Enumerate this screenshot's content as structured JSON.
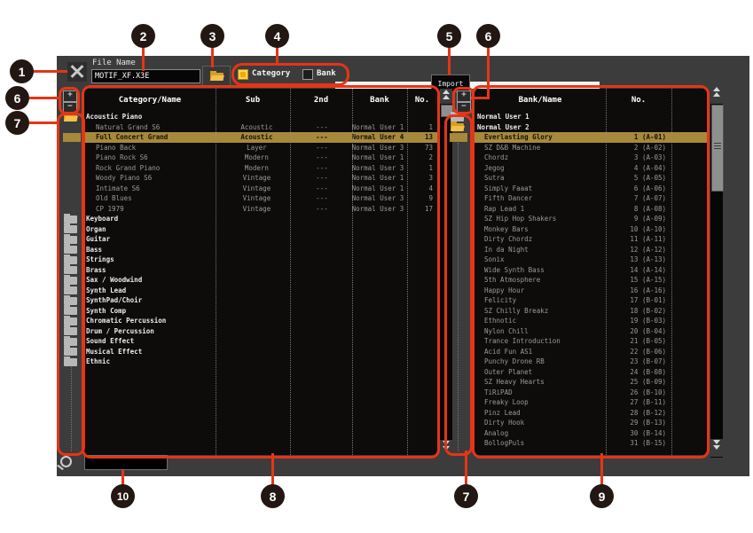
{
  "callouts": {
    "c1": "1",
    "c2": "2",
    "c3": "3",
    "c4": "4",
    "c5": "5",
    "c6": "6",
    "c7": "7",
    "c8": "8",
    "c9": "9",
    "c10": "10"
  },
  "header": {
    "file_name_label": "File Name",
    "file_name_value": "MOTIF_XF.X3E",
    "category_radio_label": "Category",
    "bank_radio_label": "Bank",
    "category_selected": true,
    "bank_selected": false,
    "import_button_label": "Import"
  },
  "search": {
    "value": ""
  },
  "left_panel": {
    "columns": [
      "Category/Name",
      "Sub",
      "2nd",
      "Bank",
      "No."
    ],
    "rows": [
      {
        "type": "category",
        "folder": "open",
        "name": "Acoustic Piano",
        "sub": "",
        "second": "",
        "bank": "",
        "no": ""
      },
      {
        "type": "voice",
        "name": "Natural Grand S6",
        "sub": "Acoustic",
        "second": "---",
        "bank": "Normal User 1",
        "no": "1"
      },
      {
        "type": "voice",
        "selected": true,
        "name": "Full Concert Grand",
        "sub": "Acoustic",
        "second": "---",
        "bank": "Normal User 4",
        "no": "13"
      },
      {
        "type": "voice",
        "name": "Piano Back",
        "sub": "Layer",
        "second": "---",
        "bank": "Normal User 3",
        "no": "73"
      },
      {
        "type": "voice",
        "name": "Piano Rock S6",
        "sub": "Modern",
        "second": "---",
        "bank": "Normal User 1",
        "no": "2"
      },
      {
        "type": "voice",
        "name": "Rock Grand Piano",
        "sub": "Modern",
        "second": "---",
        "bank": "Normal User 3",
        "no": "1"
      },
      {
        "type": "voice",
        "name": "Woody Piano S6",
        "sub": "Vintage",
        "second": "---",
        "bank": "Normal User 1",
        "no": "3"
      },
      {
        "type": "voice",
        "name": "Intimate S6",
        "sub": "Vintage",
        "second": "---",
        "bank": "Normal User 1",
        "no": "4"
      },
      {
        "type": "voice",
        "name": "Old Blues",
        "sub": "Vintage",
        "second": "---",
        "bank": "Normal User 3",
        "no": "9"
      },
      {
        "type": "voice",
        "name": "CP 1979",
        "sub": "Vintage",
        "second": "---",
        "bank": "Normal User 3",
        "no": "17"
      },
      {
        "type": "category",
        "folder": "closed",
        "name": "Keyboard",
        "sub": "",
        "second": "",
        "bank": "",
        "no": ""
      },
      {
        "type": "category",
        "folder": "closed",
        "name": "Organ",
        "sub": "",
        "second": "",
        "bank": "",
        "no": ""
      },
      {
        "type": "category",
        "folder": "closed",
        "name": "Guitar",
        "sub": "",
        "second": "",
        "bank": "",
        "no": ""
      },
      {
        "type": "category",
        "folder": "closed",
        "name": "Bass",
        "sub": "",
        "second": "",
        "bank": "",
        "no": ""
      },
      {
        "type": "category",
        "folder": "closed",
        "name": "Strings",
        "sub": "",
        "second": "",
        "bank": "",
        "no": ""
      },
      {
        "type": "category",
        "folder": "closed",
        "name": "Brass",
        "sub": "",
        "second": "",
        "bank": "",
        "no": ""
      },
      {
        "type": "category",
        "folder": "closed",
        "name": "Sax / Woodwind",
        "sub": "",
        "second": "",
        "bank": "",
        "no": ""
      },
      {
        "type": "category",
        "folder": "closed",
        "name": "Synth Lead",
        "sub": "",
        "second": "",
        "bank": "",
        "no": ""
      },
      {
        "type": "category",
        "folder": "closed",
        "name": "SynthPad/Choir",
        "sub": "",
        "second": "",
        "bank": "",
        "no": ""
      },
      {
        "type": "category",
        "folder": "closed",
        "name": "Synth Comp",
        "sub": "",
        "second": "",
        "bank": "",
        "no": ""
      },
      {
        "type": "category",
        "folder": "closed",
        "name": "Chromatic Percussion",
        "sub": "",
        "second": "",
        "bank": "",
        "no": ""
      },
      {
        "type": "category",
        "folder": "closed",
        "name": "Drum / Percussion",
        "sub": "",
        "second": "",
        "bank": "",
        "no": ""
      },
      {
        "type": "category",
        "folder": "closed",
        "name": "Sound Effect",
        "sub": "",
        "second": "",
        "bank": "",
        "no": ""
      },
      {
        "type": "category",
        "folder": "closed",
        "name": "Musical Effect",
        "sub": "",
        "second": "",
        "bank": "",
        "no": ""
      },
      {
        "type": "category",
        "folder": "closed",
        "name": "Ethnic",
        "sub": "",
        "second": "",
        "bank": "",
        "no": ""
      }
    ]
  },
  "right_panel": {
    "columns": [
      "Bank/Name",
      "No."
    ],
    "rows": [
      {
        "type": "category",
        "folder": "closed",
        "name": "Normal User 1",
        "no": ""
      },
      {
        "type": "category",
        "folder": "open",
        "name": "Normal User 2",
        "no": ""
      },
      {
        "type": "voice",
        "selected": true,
        "name": "Everlasting Glory",
        "no": "1 (A-01)"
      },
      {
        "type": "voice",
        "name": "SZ D&B Machine",
        "no": "2 (A-02)"
      },
      {
        "type": "voice",
        "name": "Chordz",
        "no": "3 (A-03)"
      },
      {
        "type": "voice",
        "name": "Jegog",
        "no": "4 (A-04)"
      },
      {
        "type": "voice",
        "name": "Sutra",
        "no": "5 (A-05)"
      },
      {
        "type": "voice",
        "name": "Simply Faaat",
        "no": "6 (A-06)"
      },
      {
        "type": "voice",
        "name": "Fifth Dancer",
        "no": "7 (A-07)"
      },
      {
        "type": "voice",
        "name": "Rap Lead 1",
        "no": "8 (A-08)"
      },
      {
        "type": "voice",
        "name": "SZ Hip Hop Shakers",
        "no": "9 (A-09)"
      },
      {
        "type": "voice",
        "name": "Monkey Bars",
        "no": "10 (A-10)"
      },
      {
        "type": "voice",
        "name": "Dirty Chordz",
        "no": "11 (A-11)"
      },
      {
        "type": "voice",
        "name": "In da Night",
        "no": "12 (A-12)"
      },
      {
        "type": "voice",
        "name": "Sonix",
        "no": "13 (A-13)"
      },
      {
        "type": "voice",
        "name": "Wide Synth Bass",
        "no": "14 (A-14)"
      },
      {
        "type": "voice",
        "name": "5th Atmosphere",
        "no": "15 (A-15)"
      },
      {
        "type": "voice",
        "name": "Happy Hour",
        "no": "16 (A-16)"
      },
      {
        "type": "voice",
        "name": "Felicity",
        "no": "17 (B-01)"
      },
      {
        "type": "voice",
        "name": "SZ Chilly Breakz",
        "no": "18 (B-02)"
      },
      {
        "type": "voice",
        "name": "Ethnotic",
        "no": "19 (B-03)"
      },
      {
        "type": "voice",
        "name": "Nylon Chill",
        "no": "20 (B-04)"
      },
      {
        "type": "voice",
        "name": "Trance Introduction",
        "no": "21 (B-05)"
      },
      {
        "type": "voice",
        "name": "Acid Fun AS1",
        "no": "22 (B-06)"
      },
      {
        "type": "voice",
        "name": "Punchy Drone RB",
        "no": "23 (B-07)"
      },
      {
        "type": "voice",
        "name": "Outer Planet",
        "no": "24 (B-08)"
      },
      {
        "type": "voice",
        "name": "SZ Heavy Hearts",
        "no": "25 (B-09)"
      },
      {
        "type": "voice",
        "name": "TiRiPAD",
        "no": "26 (B-10)"
      },
      {
        "type": "voice",
        "name": "Freaky Loop",
        "no": "27 (B-11)"
      },
      {
        "type": "voice",
        "name": "Pinz Lead",
        "no": "28 (B-12)"
      },
      {
        "type": "voice",
        "name": "Dirty Hook",
        "no": "29 (B-13)"
      },
      {
        "type": "voice",
        "name": "Analog",
        "no": "30 (B-14)"
      },
      {
        "type": "voice",
        "name": "BollogPuls",
        "no": "31 (B-15)"
      }
    ]
  },
  "colors": {
    "annotation_red": "#e53517",
    "selection_tan": "#a6893b",
    "window_gray": "#3c3c3c",
    "list_black": "#0d0c0a",
    "folder_open_yellow": "#e8b027",
    "folder_closed_gray": "#b8b8b8"
  }
}
